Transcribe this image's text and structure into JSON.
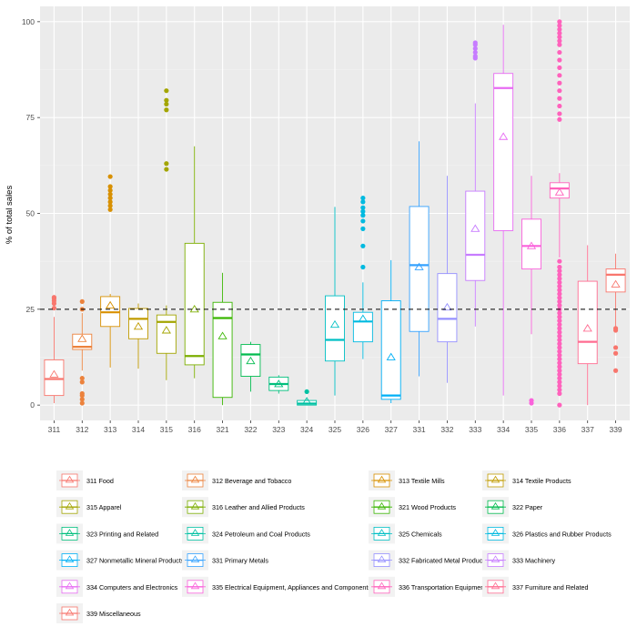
{
  "chart_data": {
    "type": "box",
    "title": "",
    "xlabel": "",
    "ylabel": "% of total sales",
    "ylim": [
      -4,
      104
    ],
    "yticks": [
      0,
      25,
      50,
      75,
      100
    ],
    "reference_line": {
      "y": 25,
      "style": "dashed"
    },
    "legend_position": "bottom",
    "categories": [
      "311",
      "312",
      "313",
      "314",
      "315",
      "316",
      "321",
      "322",
      "323",
      "324",
      "325",
      "326",
      "327",
      "331",
      "332",
      "333",
      "334",
      "335",
      "336",
      "337",
      "339"
    ],
    "series": [
      {
        "name": "311 Food",
        "color": "#F8766D",
        "q1": 2.5,
        "median": 6.8,
        "q3": 11.8,
        "whisker_low": 0.5,
        "whisker_high": 23,
        "mean": 8,
        "outliers": [
          25.3,
          26.5,
          27.2,
          27.8,
          28.1
        ]
      },
      {
        "name": "312 Beverage and Tobacco",
        "color": "#EC823C",
        "q1": 14.5,
        "median": 15.2,
        "q3": 18.5,
        "whisker_low": 9,
        "whisker_high": 24,
        "mean": 17.3,
        "outliers": [
          0.5,
          1.5,
          2.5,
          3,
          6,
          7,
          25,
          27
        ]
      },
      {
        "name": "313 Textile Mills",
        "color": "#D89000",
        "q1": 20.5,
        "median": 24.2,
        "q3": 28.3,
        "whisker_low": 9.8,
        "whisker_high": 29,
        "mean": 26,
        "outliers": [
          51,
          52,
          53,
          54,
          55,
          56,
          57,
          59.6
        ]
      },
      {
        "name": "314 Textile Products",
        "color": "#C09B00",
        "q1": 17.3,
        "median": 22.5,
        "q3": 25.2,
        "whisker_low": 9.5,
        "whisker_high": 26.5,
        "mean": 20.5,
        "outliers": []
      },
      {
        "name": "315 Apparel",
        "color": "#A3A500",
        "q1": 13.5,
        "median": 21.7,
        "q3": 23.5,
        "whisker_low": 6.5,
        "whisker_high": 26,
        "mean": 19.5,
        "outliers": [
          61.5,
          63,
          77,
          78.5,
          79.5,
          82
        ]
      },
      {
        "name": "316 Leather and Allied Products",
        "color": "#7CAE00",
        "q1": 10.5,
        "median": 12.8,
        "q3": 42.2,
        "whisker_low": 7,
        "whisker_high": 67.5,
        "mean": 25,
        "outliers": []
      },
      {
        "name": "321 Wood Products",
        "color": "#39B600",
        "q1": 2,
        "median": 22.7,
        "q3": 26.8,
        "whisker_low": 0,
        "whisker_high": 34.5,
        "mean": 18,
        "outliers": []
      },
      {
        "name": "322 Paper",
        "color": "#00BB4E",
        "q1": 7.5,
        "median": 13.2,
        "q3": 15.8,
        "whisker_low": 3.5,
        "whisker_high": 16.5,
        "mean": 11.5,
        "outliers": []
      },
      {
        "name": "323 Printing and Related",
        "color": "#00BF7D",
        "q1": 3.8,
        "median": 5.5,
        "q3": 7.3,
        "whisker_low": 3,
        "whisker_high": 7.8,
        "mean": 5.5,
        "outliers": []
      },
      {
        "name": "324 Petroleum and Coal Products",
        "color": "#00C1A3",
        "q1": 0,
        "median": 0.4,
        "q3": 1.2,
        "whisker_low": 0,
        "whisker_high": 1.5,
        "mean": 1,
        "outliers": [
          3.5
        ]
      },
      {
        "name": "325 Chemicals",
        "color": "#00BFC4",
        "q1": 11.5,
        "median": 17,
        "q3": 28.5,
        "whisker_low": 2.5,
        "whisker_high": 51.7,
        "mean": 21,
        "outliers": []
      },
      {
        "name": "326 Plastics and Rubber Products",
        "color": "#00BAE0",
        "q1": 16.5,
        "median": 21.8,
        "q3": 24.2,
        "whisker_low": 12,
        "whisker_high": 32,
        "mean": 22.5,
        "outliers": [
          36,
          41.5,
          46,
          48,
          49.5,
          50.5,
          51.5,
          53,
          54
        ]
      },
      {
        "name": "327 Nonmetallic Mineral Products",
        "color": "#00B0F6",
        "q1": 1.5,
        "median": 2.5,
        "q3": 27.2,
        "whisker_low": 0.5,
        "whisker_high": 37.8,
        "mean": 12.5,
        "outliers": []
      },
      {
        "name": "331 Primary Metals",
        "color": "#35A2FF",
        "q1": 19.2,
        "median": 36.5,
        "q3": 51.8,
        "whisker_low": 7.5,
        "whisker_high": 68.8,
        "mean": 36,
        "outliers": []
      },
      {
        "name": "332 Fabricated Metal Products",
        "color": "#9590FF",
        "q1": 16.5,
        "median": 22.5,
        "q3": 34.3,
        "whisker_low": 5.8,
        "whisker_high": 59.8,
        "mean": 25.5,
        "outliers": []
      },
      {
        "name": "333 Machinery",
        "color": "#C77CFF",
        "q1": 32.5,
        "median": 39.2,
        "q3": 55.8,
        "whisker_low": 20.5,
        "whisker_high": 78.7,
        "mean": 46,
        "outliers": [
          90.5,
          91,
          92,
          93,
          94,
          94.5
        ]
      },
      {
        "name": "334 Computers and Electronics",
        "color": "#E76BF3",
        "q1": 45.5,
        "median": 82.7,
        "q3": 86.5,
        "whisker_low": 2.5,
        "whisker_high": 99.2,
        "mean": 70,
        "outliers": []
      },
      {
        "name": "335 Electrical Equipment, Appliances and Components",
        "color": "#FA62DB",
        "q1": 35.5,
        "median": 41.5,
        "q3": 48.5,
        "whisker_low": 18.5,
        "whisker_high": 59.8,
        "mean": 41.5,
        "outliers": [
          0.5,
          1.2
        ]
      },
      {
        "name": "336 Transportation Equipment",
        "color": "#FF62BC",
        "q1": 54,
        "median": 56.5,
        "q3": 58,
        "whisker_low": 38.5,
        "whisker_high": 60.5,
        "mean": 55.5,
        "outliers": [
          0,
          3,
          4,
          5,
          6,
          7,
          8,
          9,
          10,
          11,
          12,
          13,
          14,
          15,
          16,
          17,
          18,
          19,
          20,
          21,
          22,
          23,
          24,
          25,
          26,
          27,
          28,
          29,
          30,
          31,
          32,
          33,
          34,
          35,
          36,
          37.5,
          74.5,
          76,
          78,
          80,
          82,
          84,
          86,
          88,
          90,
          92,
          94,
          95,
          96,
          97,
          98,
          99,
          100
        ]
      },
      {
        "name": "337 Furniture and Related",
        "color": "#FF6C91",
        "q1": 10.8,
        "median": 16.5,
        "q3": 32.3,
        "whisker_low": 0,
        "whisker_high": 41.7,
        "mean": 20,
        "outliers": []
      },
      {
        "name": "339 Miscellaneous",
        "color": "#F8766D",
        "q1": 29.5,
        "median": 34,
        "q3": 35.5,
        "whisker_low": 20.5,
        "whisker_high": 39.5,
        "mean": 31.5,
        "outliers": [
          9,
          13.5,
          15,
          19.5,
          20
        ]
      }
    ]
  }
}
